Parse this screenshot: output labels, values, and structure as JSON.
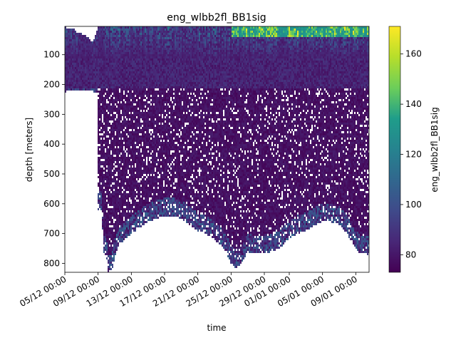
{
  "chart_data": {
    "type": "heatmap",
    "title": "eng_wlbb2fl_BB1sig",
    "xlabel": "time",
    "ylabel": "depth [meters]",
    "colorbar_label": "eng_wlbb2fl_BB1sig",
    "x_ticks": [
      "05/12 00:00",
      "09/12 00:00",
      "13/12 00:00",
      "17/12 00:00",
      "21/12 00:00",
      "25/12 00:00",
      "29/12 00:00",
      "01/01 00:00",
      "05/01 00:00",
      "09/01 00:00"
    ],
    "x_tick_days": [
      0,
      4,
      8,
      12,
      16,
      20,
      24,
      27,
      31,
      35
    ],
    "x_range_days": [
      0,
      36.6
    ],
    "y_ticks": [
      100,
      200,
      300,
      400,
      500,
      600,
      700,
      800
    ],
    "ylim": [
      830,
      5
    ],
    "y_inverted": true,
    "colorbar_ticks": [
      80,
      100,
      120,
      140,
      160
    ],
    "colorbar_range": [
      73,
      171
    ],
    "colormap": "viridis",
    "colormap_stops": [
      "#440154",
      "#482777",
      "#3f4a8a",
      "#31678e",
      "#26838f",
      "#1f9d8a",
      "#6cce5a",
      "#b6de2b",
      "#fee825"
    ],
    "grid": false,
    "max_depth_profile": {
      "days": [
        0,
        0.2,
        0.3,
        2,
        3.9,
        4.0,
        4.5,
        4.6,
        5.0,
        5.2,
        5.6,
        6.0,
        6.5,
        7.0,
        8.0,
        9.0,
        10.0,
        11.0,
        12.0,
        13.0,
        14.0,
        15.0,
        16.0,
        17.0,
        18.0,
        19.0,
        19.5,
        20.0,
        20.5,
        21.0,
        21.5,
        22.0,
        22.5,
        23.0,
        24.0,
        25.0,
        26.0,
        27.0,
        28.0,
        29.0,
        30.0,
        31.0,
        32.0,
        33.0,
        34.0,
        34.5,
        35.0,
        35.5,
        36.0,
        36.5
      ],
      "depths": [
        225,
        225,
        220,
        220,
        225,
        620,
        620,
        770,
        770,
        830,
        830,
        780,
        740,
        725,
        700,
        680,
        660,
        650,
        640,
        640,
        650,
        670,
        690,
        700,
        720,
        745,
        770,
        800,
        815,
        810,
        790,
        760,
        765,
        765,
        765,
        760,
        745,
        715,
        700,
        690,
        675,
        660,
        660,
        670,
        700,
        730,
        750,
        765,
        765,
        770
      ]
    },
    "surface_gap": {
      "days": [
        0.2,
        0.5,
        1.0,
        1.5,
        2.0,
        2.5,
        3.0,
        3.2,
        3.4,
        3.6,
        3.8,
        4.0
      ],
      "depths": [
        15,
        10,
        10,
        25,
        30,
        35,
        45,
        55,
        55,
        45,
        25,
        5
      ]
    },
    "sparse_region_depth_start": 210
  }
}
